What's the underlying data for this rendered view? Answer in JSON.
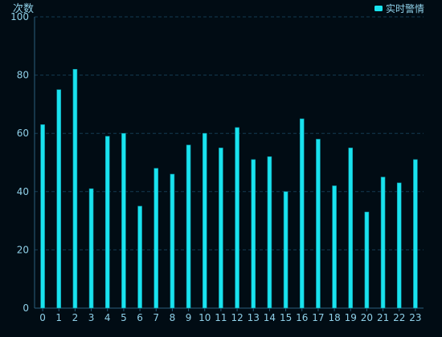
{
  "chart_data": {
    "type": "bar",
    "ylabel": "次数",
    "legend": {
      "label": "实时警情",
      "position": "top-right"
    },
    "categories": [
      "0",
      "1",
      "2",
      "3",
      "4",
      "5",
      "6",
      "7",
      "8",
      "9",
      "10",
      "11",
      "12",
      "13",
      "14",
      "15",
      "16",
      "17",
      "18",
      "19",
      "20",
      "21",
      "22",
      "23"
    ],
    "series": [
      {
        "name": "实时警情",
        "values": [
          63,
          75,
          82,
          41,
          59,
          60,
          35,
          48,
          46,
          56,
          60,
          55,
          62,
          51,
          52,
          40,
          65,
          58,
          42,
          55,
          33,
          45,
          43,
          51
        ]
      }
    ],
    "ylim": [
      0,
      100
    ],
    "yticks": [
      0,
      20,
      40,
      60,
      80,
      100
    ],
    "grid": true
  },
  "colors": {
    "background": "#010c14",
    "bar": "#19e3ee",
    "bar_edge": "#0b8fa0",
    "text": "#8fd0e8",
    "axis": "#2a5f7e",
    "grid": "#143a52"
  }
}
